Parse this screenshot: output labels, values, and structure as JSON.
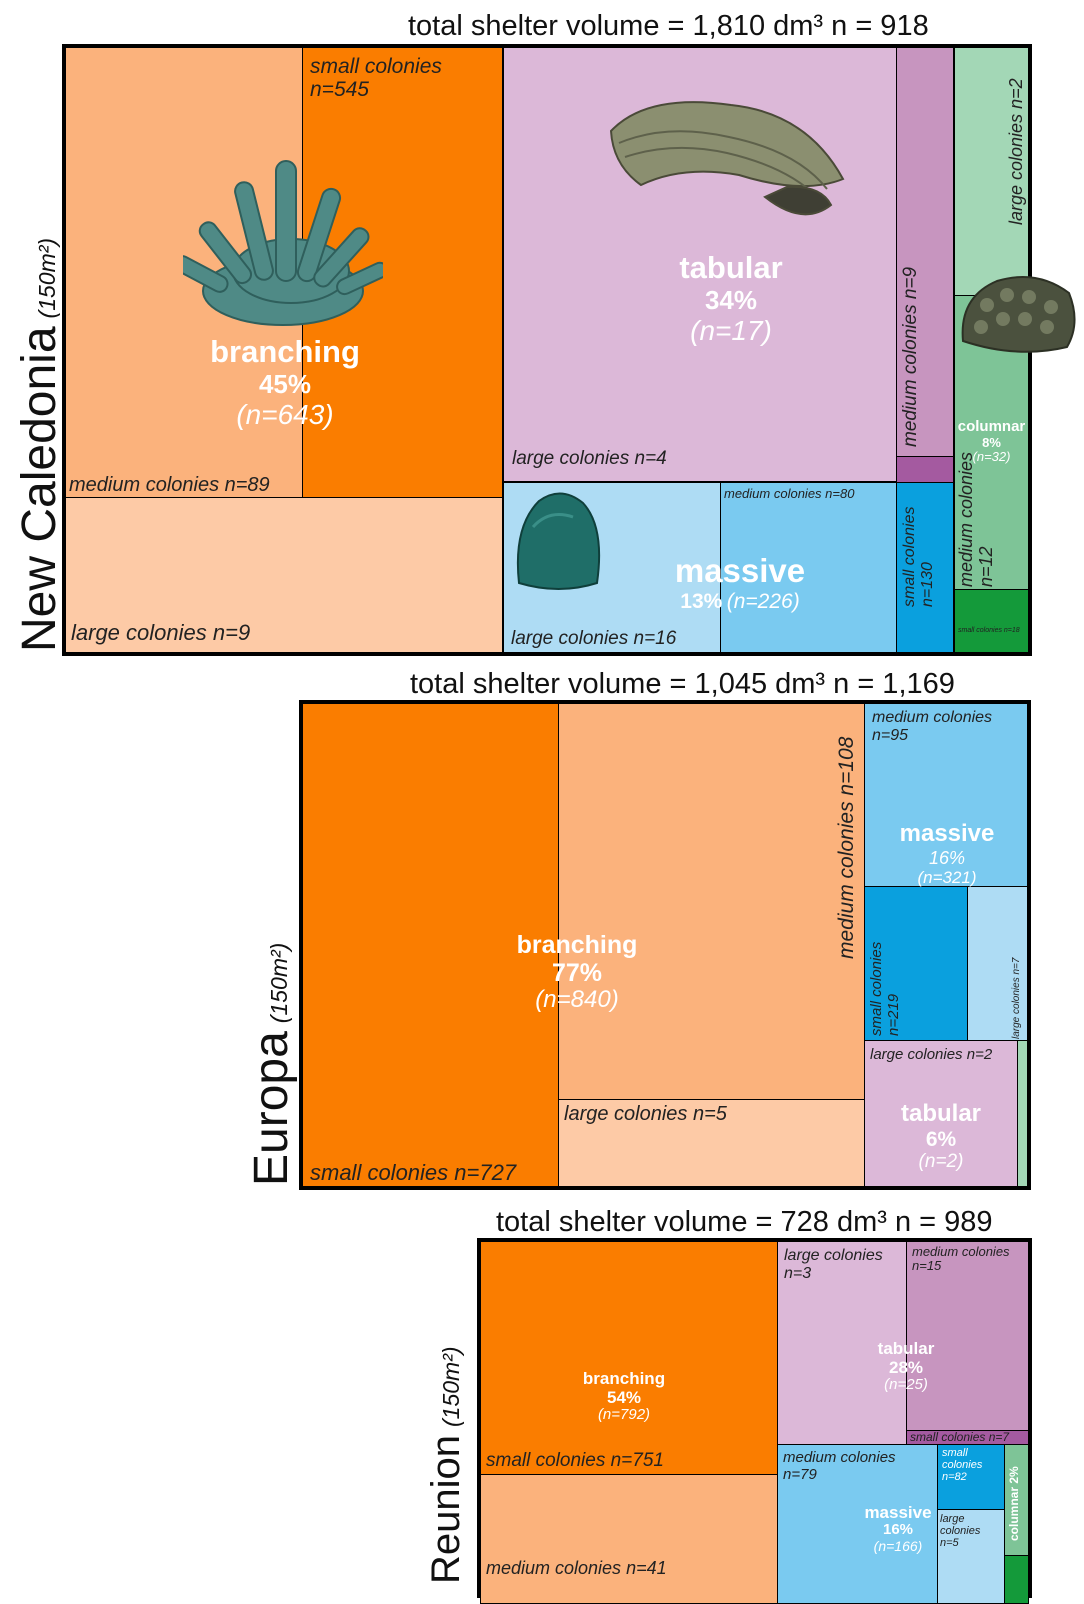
{
  "colors": {
    "branching_small": "#fa7d00",
    "branching_medium": "#fbb27c",
    "branching_large": "#fdcaa6",
    "tabular_large": "#dcb8d8",
    "tabular_medium": "#c795bf",
    "tabular_small": "#a45aa0",
    "massive_large": "#aedcf4",
    "massive_medium": "#7acaf0",
    "massive_small": "#0aa0de",
    "columnar_large": "#a3d7b6",
    "columnar_medium": "#7ec497",
    "columnar_small": "#149a3a"
  },
  "chart_data": [
    {
      "type": "treemap",
      "site": "New Caledonia",
      "area_label": "(150m²)",
      "title": "total shelter volume = 1,810 dm³  n = 918",
      "categories": [
        {
          "name": "branching",
          "percent": "45%",
          "n_label": "(n=643)",
          "groups": [
            {
              "label": "small colonies n=545",
              "size": "small",
              "n": 545
            },
            {
              "label": "medium colonies n=89",
              "size": "medium",
              "n": 89
            },
            {
              "label": "large colonies n=9",
              "size": "large",
              "n": 9
            }
          ]
        },
        {
          "name": "tabular",
          "percent": "34%",
          "n_label": "(n=17)",
          "groups": [
            {
              "label": "large colonies n=4",
              "size": "large",
              "n": 4
            },
            {
              "label": "medium colonies n=9",
              "size": "medium",
              "n": 9
            }
          ]
        },
        {
          "name": "massive",
          "percent": "13%",
          "n_label": "(n=226)",
          "groups": [
            {
              "label": "large colonies n=16",
              "size": "large",
              "n": 16
            },
            {
              "label": "medium colonies n=80",
              "size": "medium",
              "n": 80
            },
            {
              "label": "small colonies n=130",
              "size": "small",
              "n": 130
            }
          ]
        },
        {
          "name": "columnar",
          "percent": "8%",
          "n_label": "(n=32)",
          "groups": [
            {
              "label": "large colonies n=2",
              "size": "large",
              "n": 2
            },
            {
              "label": "medium colonies n=12",
              "size": "medium",
              "n": 12
            },
            {
              "label": "small colonies n=18",
              "size": "small",
              "n": 18
            }
          ]
        }
      ]
    },
    {
      "type": "treemap",
      "site": "Europa",
      "area_label": "(150m²)",
      "title": "total shelter volume = 1,045 dm³  n = 1,169",
      "categories": [
        {
          "name": "branching",
          "percent": "77%",
          "n_label": "(n=840)",
          "groups": [
            {
              "label": "small colonies n=727",
              "size": "small",
              "n": 727
            },
            {
              "label": "medium colonies n=108",
              "size": "medium",
              "n": 108
            },
            {
              "label": "large colonies n=5",
              "size": "large",
              "n": 5
            }
          ]
        },
        {
          "name": "massive",
          "percent": "16%",
          "n_label": "(n=321)",
          "groups": [
            {
              "label": "medium colonies n=95",
              "size": "medium",
              "n": 95
            },
            {
              "label": "small colonies n=219",
              "size": "small",
              "n": 219
            },
            {
              "label": "large colonies n=7",
              "size": "large",
              "n": 7
            }
          ]
        },
        {
          "name": "tabular",
          "percent": "6%",
          "n_label": "(n=2)",
          "groups": [
            {
              "label": "large colonies n=2",
              "size": "large",
              "n": 2
            }
          ]
        }
      ]
    },
    {
      "type": "treemap",
      "site": "Reunion",
      "area_label": "(150m²)",
      "title": "total shelter volume = 728 dm³  n = 989",
      "categories": [
        {
          "name": "branching",
          "percent": "54%",
          "n_label": "(n=792)",
          "groups": [
            {
              "label": "small colonies n=751",
              "size": "small",
              "n": 751
            },
            {
              "label": "medium colonies n=41",
              "size": "medium",
              "n": 41
            }
          ]
        },
        {
          "name": "tabular",
          "percent": "28%",
          "n_label": "(n=25)",
          "groups": [
            {
              "label": "large colonies n=3",
              "size": "large",
              "n": 3
            },
            {
              "label": "medium colonies n=15",
              "size": "medium",
              "n": 15
            },
            {
              "label": "small colonies n=7",
              "size": "small",
              "n": 7
            }
          ]
        },
        {
          "name": "massive",
          "percent": "16%",
          "n_label": "(n=166)",
          "groups": [
            {
              "label": "medium colonies n=79",
              "size": "medium",
              "n": 79
            },
            {
              "label": "small colonies n=82",
              "size": "small",
              "n": 82
            },
            {
              "label": "large colonies n=5",
              "size": "large",
              "n": 5
            }
          ]
        },
        {
          "name": "columnar",
          "percent": "2%",
          "n_label": "",
          "groups": []
        }
      ]
    }
  ]
}
